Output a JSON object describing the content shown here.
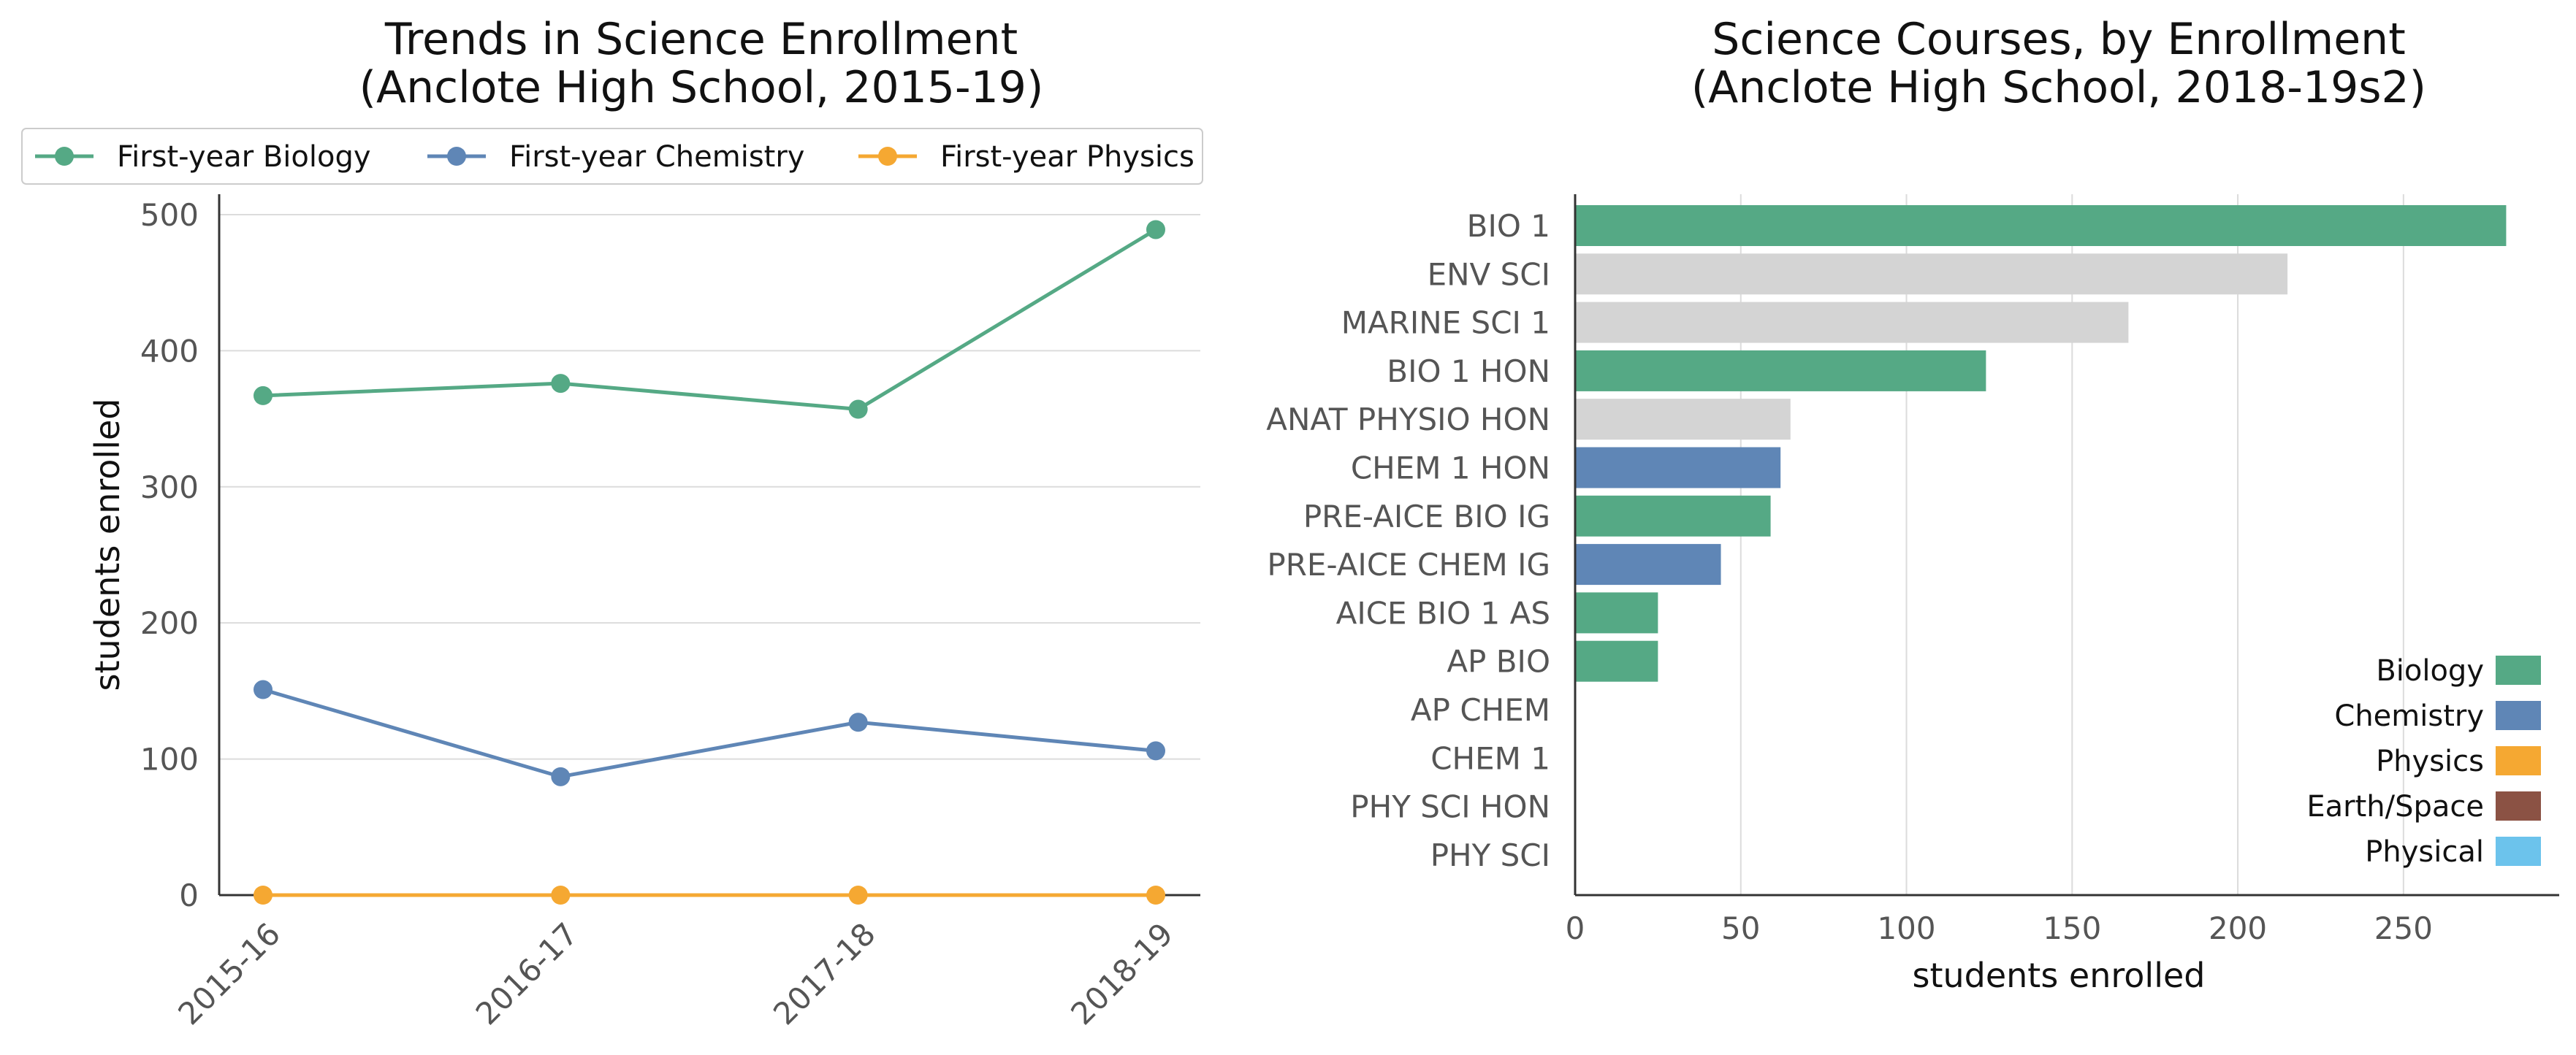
{
  "chart_data": [
    {
      "type": "line",
      "title": "Trends in Science Enrollment",
      "subtitle": "(Anclote High School, 2015-19)",
      "xlabel": "",
      "ylabel": "students enrolled",
      "categories": [
        "2015-16",
        "2016-17",
        "2017-18",
        "2018-19"
      ],
      "ylim": [
        0,
        515
      ],
      "yticks": [
        0,
        100,
        200,
        300,
        400,
        500
      ],
      "grid": "horizontal",
      "legend": "top",
      "series": [
        {
          "name": "First-year Biology",
          "color": "#55a985",
          "values": [
            367,
            376,
            357,
            489
          ]
        },
        {
          "name": "First-year Chemistry",
          "color": "#5f86b6",
          "values": [
            151,
            87,
            127,
            106
          ]
        },
        {
          "name": "First-year Physics",
          "color": "#f5a832",
          "values": [
            0,
            0,
            0,
            0
          ]
        }
      ]
    },
    {
      "type": "bar",
      "orientation": "horizontal",
      "title": "Science Courses, by Enrollment",
      "subtitle": "(Anclote High School, 2018-19s2)",
      "xlabel": "students enrolled",
      "ylabel": "",
      "xlim": [
        0,
        297
      ],
      "xticks": [
        0,
        50,
        100,
        150,
        200,
        250
      ],
      "grid": "vertical",
      "legend": "bottom-right",
      "categories": [
        "BIO 1",
        "ENV SCI",
        "MARINE SCI 1",
        "BIO 1 HON",
        "ANAT PHYSIO HON",
        "CHEM 1 HON",
        "PRE-AICE BIO IG",
        "PRE-AICE CHEM IG",
        "AICE BIO 1 AS",
        "AP BIO",
        "AP CHEM",
        "CHEM 1",
        "PHY SCI HON",
        "PHY SCI"
      ],
      "values": [
        281,
        215,
        167,
        124,
        65,
        62,
        59,
        44,
        25,
        25,
        0,
        0,
        0,
        0
      ],
      "bar_colors": [
        "#55a985",
        "#d4d4d4",
        "#d4d4d4",
        "#55a985",
        "#d4d4d4",
        "#5f86b6",
        "#55a985",
        "#5f86b6",
        "#55a985",
        "#55a985",
        "#5f86b6",
        "#5f86b6",
        "#6cc3ec",
        "#6cc3ec"
      ],
      "legend_items": [
        {
          "name": "Biology",
          "color": "#55a985"
        },
        {
          "name": "Chemistry",
          "color": "#5f86b6"
        },
        {
          "name": "Physics",
          "color": "#f5a832"
        },
        {
          "name": "Earth/Space",
          "color": "#8b5244"
        },
        {
          "name": "Physical",
          "color": "#6cc3ec"
        }
      ]
    }
  ]
}
